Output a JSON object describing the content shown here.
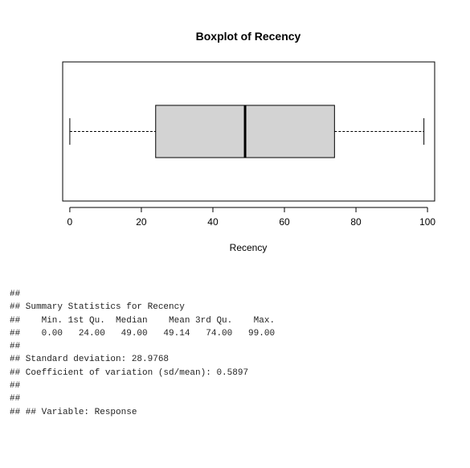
{
  "chart_data": {
    "type": "boxplot",
    "title": "Boxplot of Recency",
    "xlabel": "Recency",
    "ylabel": "",
    "orientation": "horizontal",
    "xlim": [
      -2,
      102
    ],
    "ticks": [
      0,
      20,
      40,
      60,
      80,
      100
    ],
    "stats": {
      "min": 0,
      "q1": 24,
      "median": 49,
      "q3": 74,
      "max": 99
    },
    "box_fill": "#d3d3d3",
    "line_color": "#000000",
    "grid": false
  },
  "console": {
    "lines": [
      "##",
      "## Summary Statistics for Recency",
      "##    Min. 1st Qu.  Median    Mean 3rd Qu.    Max.",
      "##    0.00   24.00   49.00   49.14   74.00   99.00",
      "##",
      "## Standard deviation: 28.9768",
      "## Coefficient of variation (sd/mean): 0.5897",
      "##",
      "##",
      "## ## Variable: Response"
    ]
  }
}
